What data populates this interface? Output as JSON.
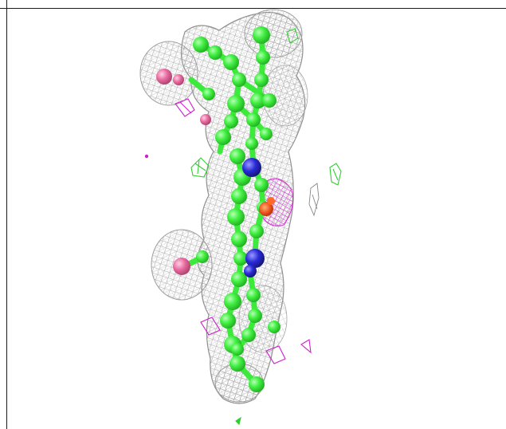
{
  "image": {
    "subject": "",
    "colors": {
      "mesh": "#9a9a9a",
      "carbon": "#33ee33",
      "nitrogen": "#2a2ad8",
      "oxygen": "#e86aa0",
      "positive_density": "#33cc33",
      "negative_density": "#cc22cc",
      "metal": "#e85020"
    }
  }
}
